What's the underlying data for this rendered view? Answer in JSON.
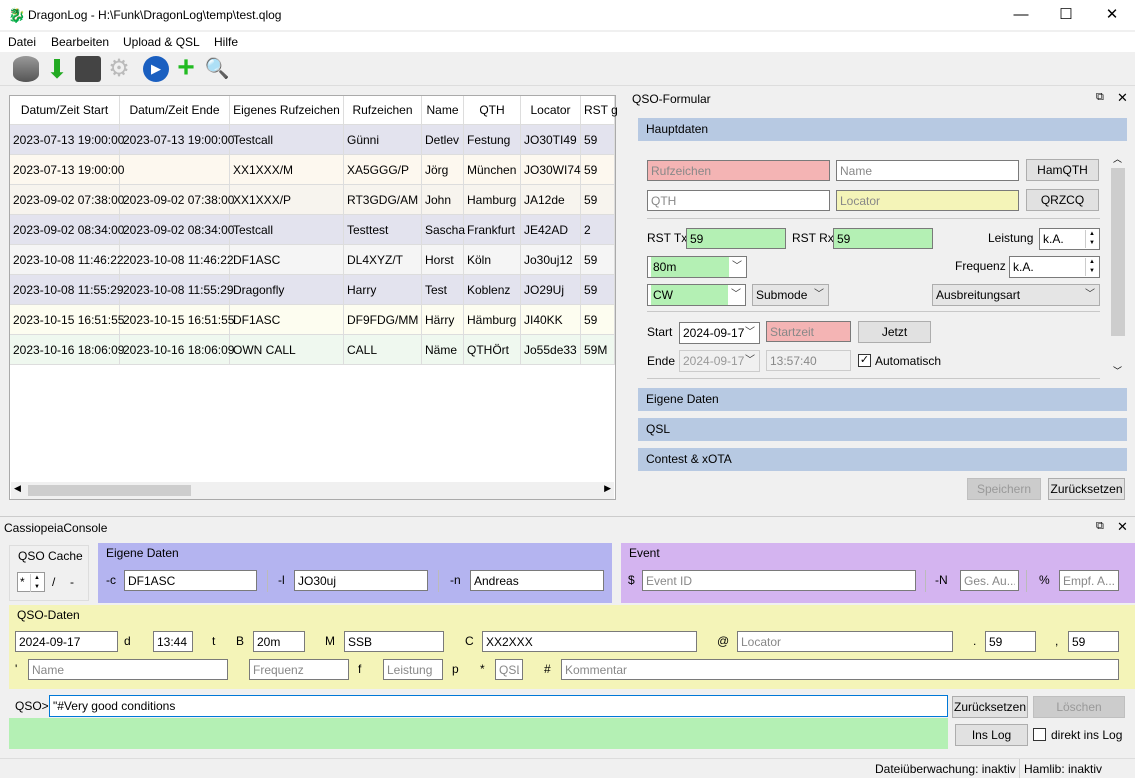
{
  "window": {
    "title": "DragonLog - H:\\Funk\\DragonLog\\temp\\test.qlog",
    "minimize": "—",
    "maximize": "☐",
    "close": "✕"
  },
  "menu": [
    "Datei",
    "Bearbeiten",
    "Upload & QSL",
    "Hilfe"
  ],
  "toolbar": [
    "database-icon",
    "import-icon",
    "save-settings-icon",
    "settings-icon",
    "play-icon",
    "add-icon",
    "search-icon"
  ],
  "table": {
    "columns": [
      "Datum/Zeit Start",
      "Datum/Zeit Ende",
      "Eigenes Rufzeichen",
      "Rufzeichen",
      "Name",
      "QTH",
      "Locator",
      "RST g"
    ],
    "rows": [
      [
        "2023-07-13 19:00:00",
        "2023-07-13 19:00:00",
        "Testcall",
        "Günni",
        "Detlev",
        "Festung",
        "JO30TI49",
        "59"
      ],
      [
        "2023-07-13 19:00:00",
        "",
        "XX1XXX/M",
        "XA5GGG/P",
        "Jörg",
        "München",
        "JO30WI74",
        "59"
      ],
      [
        "2023-09-02 07:38:00",
        "2023-09-02 07:38:00",
        "XX1XXX/P",
        "RT3GDG/AM",
        "John",
        "Hamburg",
        "JA12de",
        "59"
      ],
      [
        "2023-09-02 08:34:00",
        "2023-09-02 08:34:00",
        "Testcall",
        "Testtest",
        "Sascha",
        "Frankfurt",
        "JE42AD",
        "2"
      ],
      [
        "2023-10-08 11:46:22",
        "2023-10-08 11:46:22",
        "DF1ASC",
        "DL4XYZ/T",
        "Horst",
        "Köln",
        "Jo30uj12",
        "59"
      ],
      [
        "2023-10-08 11:55:29",
        "2023-10-08 11:55:29",
        "Dragonfly",
        "Harry",
        "Test",
        "Koblenz",
        "JO29Uj",
        "59"
      ],
      [
        "2023-10-15 16:51:55",
        "2023-10-15 16:51:55",
        "DF1ASC",
        "DF9FDG/MM",
        "Härry",
        "Hämburg",
        "JI40KK",
        "59"
      ],
      [
        "2023-10-16 18:06:09",
        "2023-10-16 18:06:09",
        "OWN CALL",
        "CALL",
        "Näme",
        "QTHÖrt",
        "Jo55de33",
        "59M"
      ]
    ],
    "row_colors": [
      "#e3e3ee",
      "#fdf8ef",
      "#f7f4ee",
      "#e3e3ee",
      "#f5f5f5",
      "#e3e3ee",
      "#fdfdf0",
      "#eff8ef"
    ]
  },
  "qso_form": {
    "title": "QSO-Formular",
    "sections": {
      "hauptdaten": "Hauptdaten",
      "eigene": "Eigene Daten",
      "qsl": "QSL",
      "contest": "Contest & xOTA"
    },
    "rufzeichen_ph": "Rufzeichen",
    "name_ph": "Name",
    "qth_ph": "QTH",
    "locator_ph": "Locator",
    "hamqth": "HamQTH",
    "qrzcq": "QRZCQ",
    "rst_tx_label": "RST Tx",
    "rst_tx": "59",
    "rst_rx_label": "RST Rx",
    "rst_rx": "59",
    "leistung_label": "Leistung",
    "leistung": "k.A.",
    "frequenz_label": "Frequenz",
    "frequenz": "k.A.",
    "band": "80m",
    "mode": "CW",
    "submode": "Submode",
    "propagation": "Ausbreitungsart",
    "start_label": "Start",
    "start_date": "2024-09-17",
    "start_time_ph": "Startzeit",
    "jetzt": "Jetzt",
    "end_label": "Ende",
    "end_date": "2024-09-17",
    "end_time": "13:57:40",
    "automatisch": "Automatisch",
    "speichern": "Speichern",
    "zuruecksetzen": "Zurücksetzen"
  },
  "console": {
    "title": "CassiopeiaConsole",
    "cache": {
      "title": "QSO Cache",
      "value": "*",
      "slash": "/",
      "dash": "-"
    },
    "eigene": {
      "title": "Eigene Daten",
      "c_label": "-c",
      "c": "DF1ASC",
      "l_label": "-l",
      "l": "JO30uj",
      "n_label": "-n",
      "n": "Andreas"
    },
    "event": {
      "title": "Event",
      "id_label": "$",
      "id_ph": "Event ID",
      "N_label": "-N",
      "N_ph": "Ges. Au...",
      "pct_label": "%",
      "pct_ph": "Empf. A..."
    },
    "qso": {
      "title": "QSO-Daten",
      "date": "2024-09-17",
      "d": "d",
      "time": "13:44",
      "t": "t",
      "B": "B",
      "band": "20m",
      "M": "M",
      "mode": "SSB",
      "C": "C",
      "call": "XX2XXX",
      "at": "@",
      "locator_ph": "Locator",
      "dot": ".",
      "rst1": "59",
      "comma": ",",
      "rst2": "59",
      "apos": "'",
      "name_ph": "Name",
      "freq_ph": "Frequenz",
      "f": "f",
      "power_ph": "Leistung",
      "p": "p",
      "star": "*",
      "qsl_ph": "QSL",
      "hash": "#",
      "comment_ph": "Kommentar"
    },
    "prompt": "QSO>",
    "input": "\"#Very good conditions",
    "reset": "Zurücksetzen",
    "delete": "Löschen",
    "inslog": "Ins Log",
    "direkt": "direkt ins Log"
  },
  "status": {
    "file": "Dateiüberwachung: inaktiv",
    "hamlib": "Hamlib: inaktiv"
  },
  "colors": {
    "section": "#b7c9e2",
    "eigene": "#b4b4f0",
    "event": "#d4b4f0",
    "qso": "#f4f4b8",
    "green": "#b4f0b4",
    "red": "#f4b4b4"
  }
}
